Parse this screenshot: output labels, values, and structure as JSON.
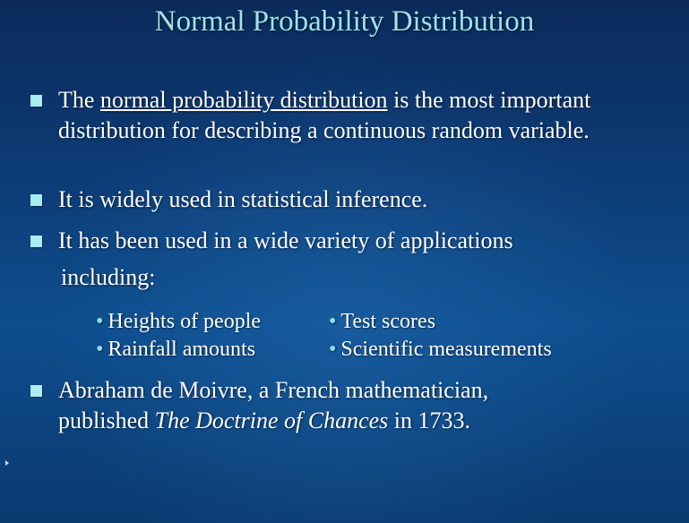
{
  "title": "Normal Probability Distribution",
  "bullets": {
    "b1": {
      "pre": "The ",
      "link": "normal probability distribution",
      "post": " is the most important distribution for describing a continuous random variable."
    },
    "b2": "It is widely used in statistical inference.",
    "b3": {
      "line1": "It has been used in a wide variety of applications",
      "line2": "including:"
    },
    "applications": [
      "Heights of people",
      "Test scores",
      "Rainfall amounts",
      "Scientific measurements"
    ],
    "b4": {
      "line1": "Abraham de Moivre, a French mathematician,",
      "pre2": "published ",
      "book": "The Doctrine of Chances",
      "post2": " in 1733."
    }
  },
  "colors": {
    "title": "#9fe3ea",
    "bullet_square": "#a9ecf2",
    "background": "#0d3a73"
  }
}
